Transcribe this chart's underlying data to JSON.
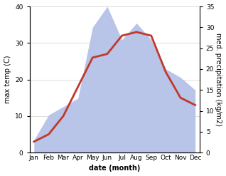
{
  "months": [
    "Jan",
    "Feb",
    "Mar",
    "Apr",
    "May",
    "Jun",
    "Jul",
    "Aug",
    "Sep",
    "Oct",
    "Nov",
    "Dec"
  ],
  "temperature": [
    3,
    5,
    10,
    18,
    26,
    27,
    32,
    33,
    32,
    22,
    15,
    13
  ],
  "precipitation": [
    3,
    9,
    11,
    13,
    30,
    35,
    27,
    31,
    27,
    20,
    18,
    15
  ],
  "temp_color": "#c0392b",
  "precip_fill_color": "#b8c4e8",
  "left_ylabel": "max temp (C)",
  "right_ylabel": "med. precipitation (kg/m2)",
  "xlabel": "date (month)",
  "ylim_left": [
    0,
    40
  ],
  "ylim_right": [
    0,
    35
  ],
  "yticks_left": [
    0,
    10,
    20,
    30,
    40
  ],
  "yticks_right": [
    0,
    5,
    10,
    15,
    20,
    25,
    30,
    35
  ],
  "bg_color": "#ffffff",
  "linewidth": 2.0,
  "label_fontsize": 7.0,
  "tick_fontsize": 6.5
}
